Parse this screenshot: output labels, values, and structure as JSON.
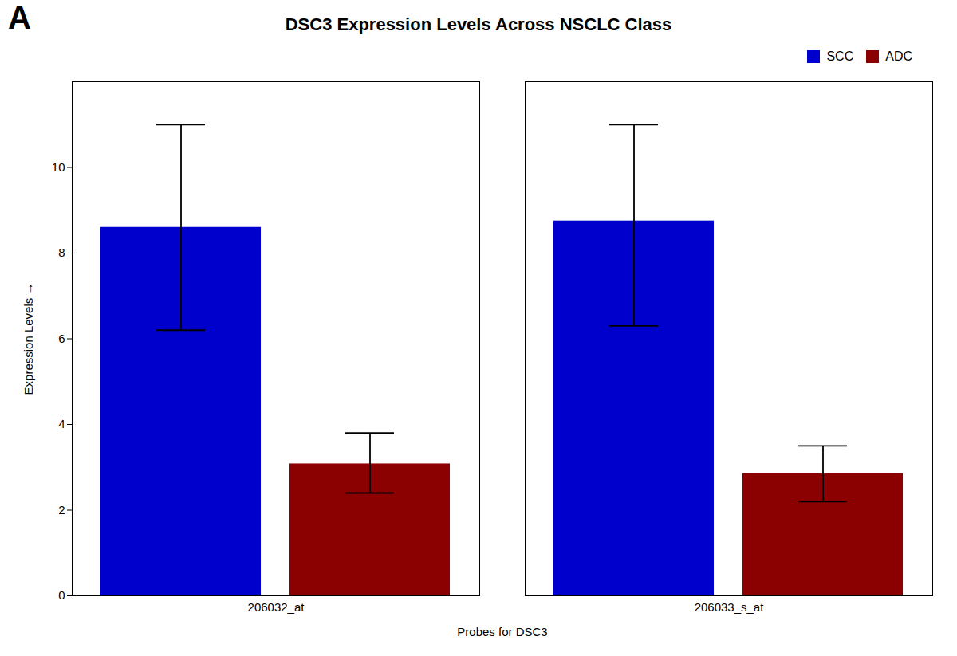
{
  "chart_data": {
    "type": "bar",
    "title": "DSC3 Expression Levels Across NSCLC Class",
    "xlabel": "Probes for DSC3",
    "ylabel": "Expression Levels",
    "annotations": [
      "A"
    ],
    "categories": [
      "206032_at",
      "206033_s_at"
    ],
    "series": [
      {
        "name": "SCC",
        "color": "#0000CD",
        "values": [
          8.6,
          8.75
        ],
        "errors_low": [
          2.4,
          2.45
        ],
        "errors_high": [
          2.4,
          2.25
        ]
      },
      {
        "name": "ADC",
        "color": "#8B0000",
        "values": [
          3.08,
          2.85
        ],
        "errors_low": [
          0.68,
          0.65
        ],
        "errors_high": [
          0.72,
          0.65
        ]
      }
    ],
    "ylim": [
      0,
      12
    ],
    "yticks": [
      0,
      2,
      4,
      6,
      8,
      10
    ],
    "grid": false,
    "legend": "upper right"
  }
}
